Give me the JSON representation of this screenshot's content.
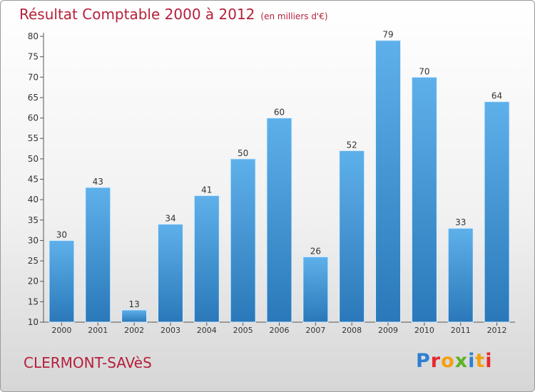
{
  "title": "Résultat Comptable 2000 à 2012",
  "unit_note": "(en milliers d'€)",
  "location": "CLERMONT-SAVèS",
  "brand": {
    "letters": [
      "P",
      "r",
      "o",
      "x",
      "i",
      "t",
      "i"
    ],
    "colors": [
      "#2e7fd1",
      "#e8262b",
      "#f3a010",
      "#5fb224",
      "#2e7fd1",
      "#f3a010",
      "#e8262b"
    ]
  },
  "colors": {
    "title": "#b5203a",
    "bar_light": "#5eb0ea",
    "bar_dark": "#2a78b9",
    "axis": "#555555"
  },
  "chart_data": {
    "type": "bar",
    "categories": [
      "2000",
      "2001",
      "2002",
      "2003",
      "2004",
      "2005",
      "2006",
      "2007",
      "2008",
      "2009",
      "2010",
      "2011",
      "2012"
    ],
    "values": [
      30,
      43,
      13,
      34,
      41,
      50,
      60,
      26,
      52,
      79,
      70,
      33,
      64
    ],
    "ylim": [
      10,
      80
    ],
    "yticks": [
      10,
      15,
      20,
      25,
      30,
      35,
      40,
      45,
      50,
      55,
      60,
      65,
      70,
      75,
      80
    ],
    "grid": false,
    "data_labels": true
  }
}
